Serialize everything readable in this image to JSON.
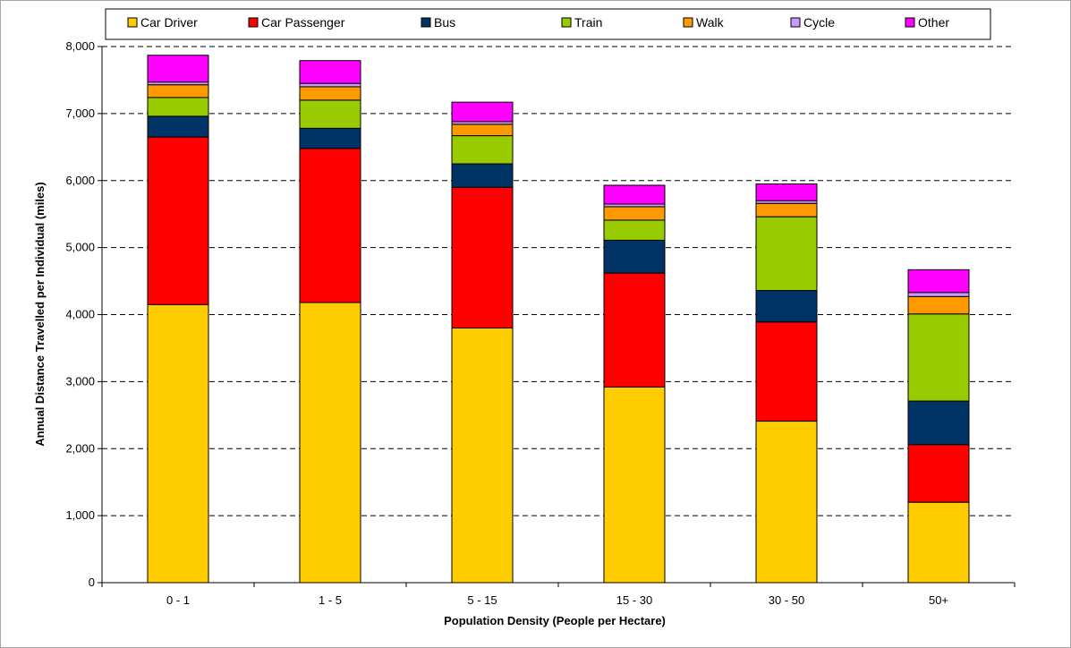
{
  "chart_data": {
    "type": "bar",
    "stacked": true,
    "title": "",
    "xlabel": "Population Density (People per Hectare)",
    "ylabel": "Annual Distance Travelled per Individual (miles)",
    "ylim": [
      0,
      8000
    ],
    "yticks": [
      0,
      1000,
      2000,
      3000,
      4000,
      5000,
      6000,
      7000,
      8000
    ],
    "ytick_labels": [
      "0",
      "1,000",
      "2,000",
      "3,000",
      "4,000",
      "5,000",
      "6,000",
      "7,000",
      "8,000"
    ],
    "grid": "horizontal dashed",
    "legend_position": "top",
    "categories": [
      "0 - 1",
      "1 - 5",
      "5 - 15",
      "15 - 30",
      "30 - 50",
      "50+"
    ],
    "series": [
      {
        "name": "Car Driver",
        "color": "#ffcc00",
        "values": [
          4150,
          4180,
          3800,
          2920,
          2410,
          1200
        ]
      },
      {
        "name": "Car Passenger",
        "color": "#ff0000",
        "values": [
          2500,
          2300,
          2100,
          1700,
          1480,
          860
        ]
      },
      {
        "name": "Bus",
        "color": "#003366",
        "values": [
          310,
          300,
          350,
          490,
          470,
          650
        ]
      },
      {
        "name": "Train",
        "color": "#99cc00",
        "values": [
          280,
          420,
          420,
          300,
          1100,
          1300
        ]
      },
      {
        "name": "Walk",
        "color": "#ff9900",
        "values": [
          190,
          200,
          170,
          200,
          200,
          260
        ]
      },
      {
        "name": "Cycle",
        "color": "#cc99ff",
        "values": [
          40,
          50,
          40,
          40,
          40,
          60
        ]
      },
      {
        "name": "Other",
        "color": "#ff00ff",
        "values": [
          400,
          340,
          290,
          280,
          250,
          340
        ]
      }
    ]
  }
}
